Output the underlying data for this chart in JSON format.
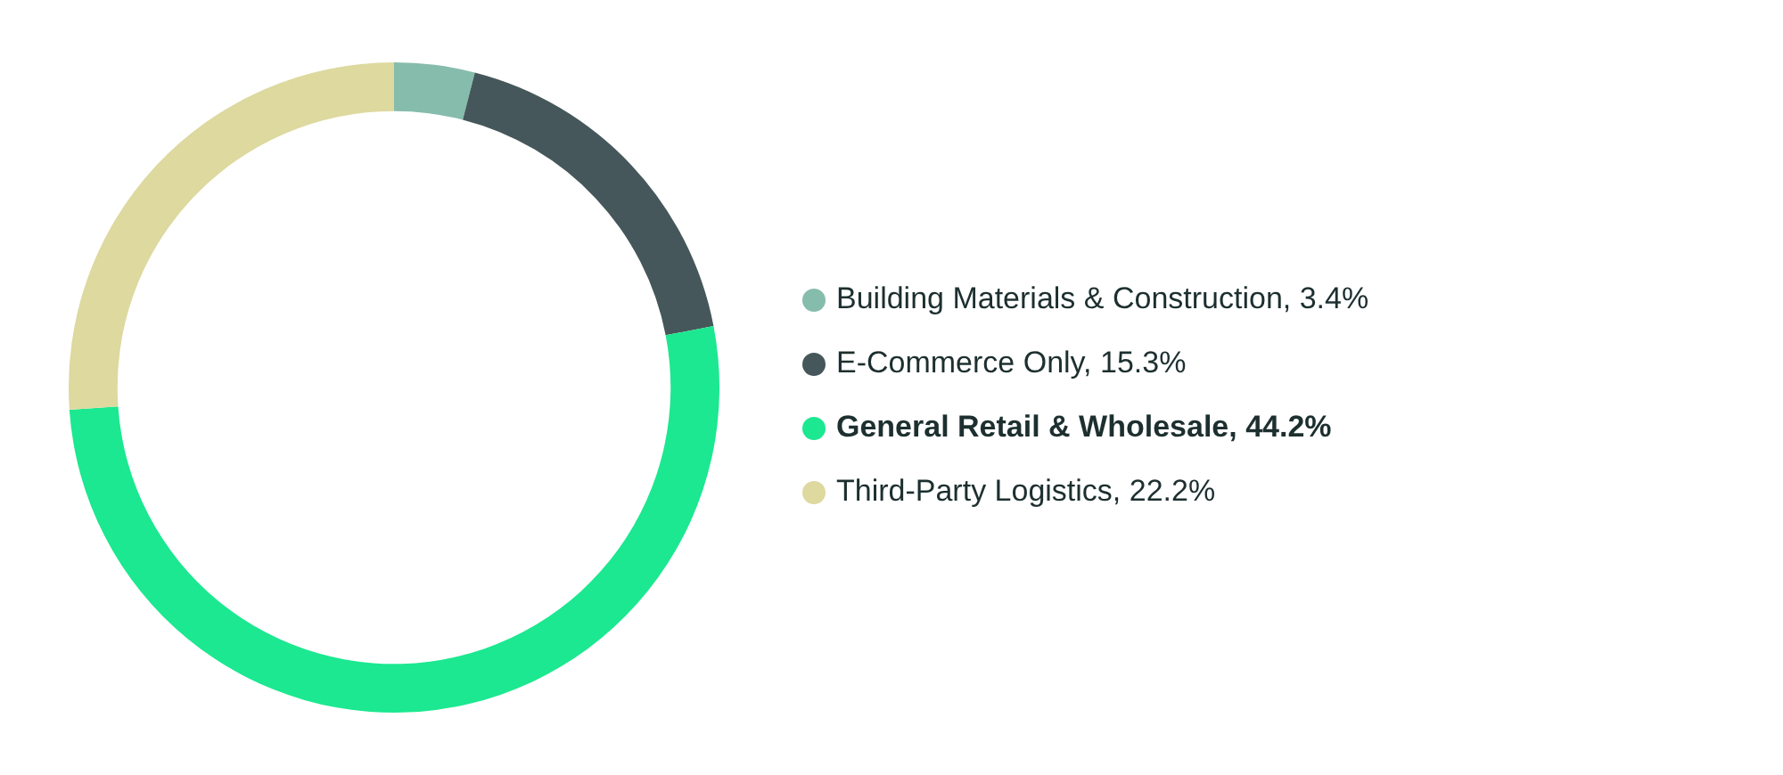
{
  "chart_data": {
    "type": "donut",
    "categories": [
      "Building Materials & Construction",
      "E-Commerce Only",
      "General Retail & Wholesale",
      "Third-Party Logistics"
    ],
    "values": [
      3.4,
      15.3,
      44.2,
      22.2
    ],
    "value_labels": [
      "3.4%",
      "15.3%",
      "44.2%",
      "22.2%"
    ],
    "colors": [
      "#86bcac",
      "#45575a",
      "#1be890",
      "#ddd99f"
    ],
    "legend": "right"
  }
}
